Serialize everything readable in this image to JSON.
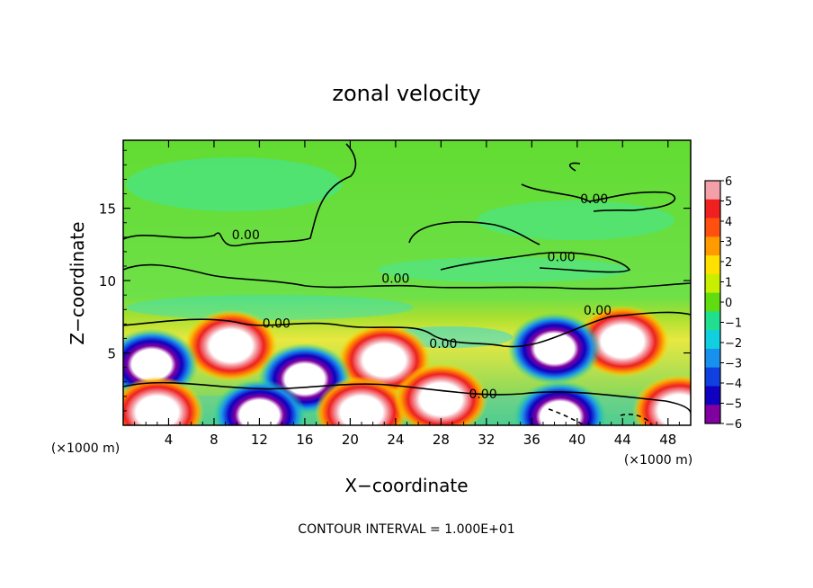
{
  "chart_data": {
    "type": "heatmap",
    "title": "zonal velocity",
    "xlabel": "X−coordinate",
    "ylabel": "Z−coordinate",
    "x_unit_label": "(×1000 m)",
    "z_unit_label": "(×1000 m)",
    "xlim": [
      0,
      50
    ],
    "ylim": [
      0,
      19.7
    ],
    "x_ticks": [
      4,
      8,
      12,
      16,
      20,
      24,
      28,
      32,
      36,
      40,
      44,
      48
    ],
    "y_ticks": [
      5,
      10,
      15
    ],
    "colorbar": {
      "ticks": [
        6,
        5,
        4,
        3,
        2,
        1,
        0,
        -1,
        -2,
        -3,
        -4,
        -5,
        -6
      ],
      "colors": [
        "#f4a0a8",
        "#ee2020",
        "#ff5010",
        "#ff9a00",
        "#ffe000",
        "#c8ee00",
        "#60dc10",
        "#20e090",
        "#10d0e0",
        "#1890ee",
        "#1040e0",
        "#1000c0",
        "#8000a0"
      ]
    },
    "contour_labels": [
      {
        "text": "0.00",
        "x": 10.8,
        "z": 13.1
      },
      {
        "text": "0.00",
        "x": 41.5,
        "z": 15.6
      },
      {
        "text": "0.00",
        "x": 38.6,
        "z": 11.6
      },
      {
        "text": "0.00",
        "x": 24.0,
        "z": 10.1
      },
      {
        "text": "0.00",
        "x": 41.8,
        "z": 7.9
      },
      {
        "text": "0.00",
        "x": 13.5,
        "z": 7.0
      },
      {
        "text": "0.00",
        "x": 28.2,
        "z": 5.6
      },
      {
        "text": "0.00",
        "x": 31.7,
        "z": 2.1
      }
    ],
    "features": [
      {
        "kind": "jet-max",
        "x": 9.5,
        "z": 5.5
      },
      {
        "kind": "jet-max",
        "x": 23.0,
        "z": 4.5
      },
      {
        "kind": "jet-max",
        "x": 44.0,
        "z": 5.8
      },
      {
        "kind": "jet-min",
        "x": 2.5,
        "z": 4.2
      },
      {
        "kind": "jet-min",
        "x": 38.0,
        "z": 5.3
      },
      {
        "kind": "jet-min",
        "x": 16.0,
        "z": 3.2
      },
      {
        "kind": "jet-max",
        "x": 3.0,
        "z": 0.9
      },
      {
        "kind": "jet-max",
        "x": 21.0,
        "z": 0.9
      },
      {
        "kind": "jet-min",
        "x": 12.0,
        "z": 0.7
      },
      {
        "kind": "jet-min",
        "x": 38.5,
        "z": 0.6
      },
      {
        "kind": "jet-max",
        "x": 28.0,
        "z": 1.8
      },
      {
        "kind": "jet-max",
        "x": 49.0,
        "z": 1.0
      }
    ],
    "footer": "CONTOUR INTERVAL = 1.000E+01"
  }
}
